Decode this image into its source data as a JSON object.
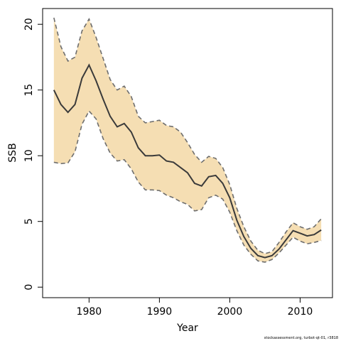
{
  "chart_data": {
    "type": "area",
    "xlabel": "Year",
    "ylabel": "SSB",
    "xlim": [
      1973.4,
      2014.6
    ],
    "ylim": [
      -0.8,
      21.2
    ],
    "xticks": [
      1980,
      1990,
      2000,
      2010
    ],
    "yticks": [
      0,
      5,
      10,
      15,
      20
    ],
    "grid": false,
    "footnote": "stockassessment.org, turbot-qt-01, r3818",
    "colors": {
      "band": "#F5DEB3",
      "bounds": "#6E6E6E",
      "estimate": "#3A3A3A"
    },
    "x": [
      1975,
      1976,
      1977,
      1978,
      1979,
      1980,
      1981,
      1982,
      1983,
      1984,
      1985,
      1986,
      1987,
      1988,
      1989,
      1990,
      1991,
      1992,
      1993,
      1994,
      1995,
      1996,
      1997,
      1998,
      1999,
      2000,
      2001,
      2002,
      2003,
      2004,
      2005,
      2006,
      2007,
      2008,
      2009,
      2010,
      2011,
      2012,
      2013
    ],
    "series": [
      {
        "role": "upper",
        "values": [
          20.5,
          18.3,
          17.2,
          17.5,
          19.5,
          20.4,
          19.0,
          17.4,
          15.8,
          15.0,
          15.3,
          14.5,
          13.0,
          12.5,
          12.6,
          12.7,
          12.3,
          12.2,
          11.8,
          11.0,
          10.1,
          9.5,
          9.95,
          9.8,
          9.1,
          7.8,
          6.0,
          4.6,
          3.5,
          2.8,
          2.55,
          2.7,
          3.4,
          4.2,
          4.9,
          4.6,
          4.4,
          4.6,
          5.2
        ]
      },
      {
        "role": "estimate",
        "values": [
          15.0,
          13.9,
          13.3,
          13.9,
          15.9,
          16.9,
          15.7,
          14.3,
          13.0,
          12.2,
          12.45,
          11.8,
          10.6,
          10.0,
          10.0,
          10.05,
          9.6,
          9.5,
          9.1,
          8.7,
          7.9,
          7.7,
          8.4,
          8.5,
          7.9,
          6.8,
          5.1,
          3.85,
          2.95,
          2.4,
          2.25,
          2.4,
          2.9,
          3.6,
          4.3,
          4.1,
          3.9,
          4.0,
          4.35
        ]
      },
      {
        "role": "lower",
        "values": [
          9.5,
          9.4,
          9.45,
          10.3,
          12.4,
          13.4,
          12.8,
          11.3,
          10.2,
          9.6,
          9.7,
          9.0,
          8.0,
          7.4,
          7.4,
          7.35,
          7.0,
          6.8,
          6.5,
          6.3,
          5.8,
          5.9,
          6.8,
          7.0,
          6.7,
          5.7,
          4.3,
          3.2,
          2.5,
          2.0,
          1.9,
          2.1,
          2.6,
          3.2,
          3.8,
          3.5,
          3.3,
          3.4,
          3.55
        ]
      }
    ]
  }
}
